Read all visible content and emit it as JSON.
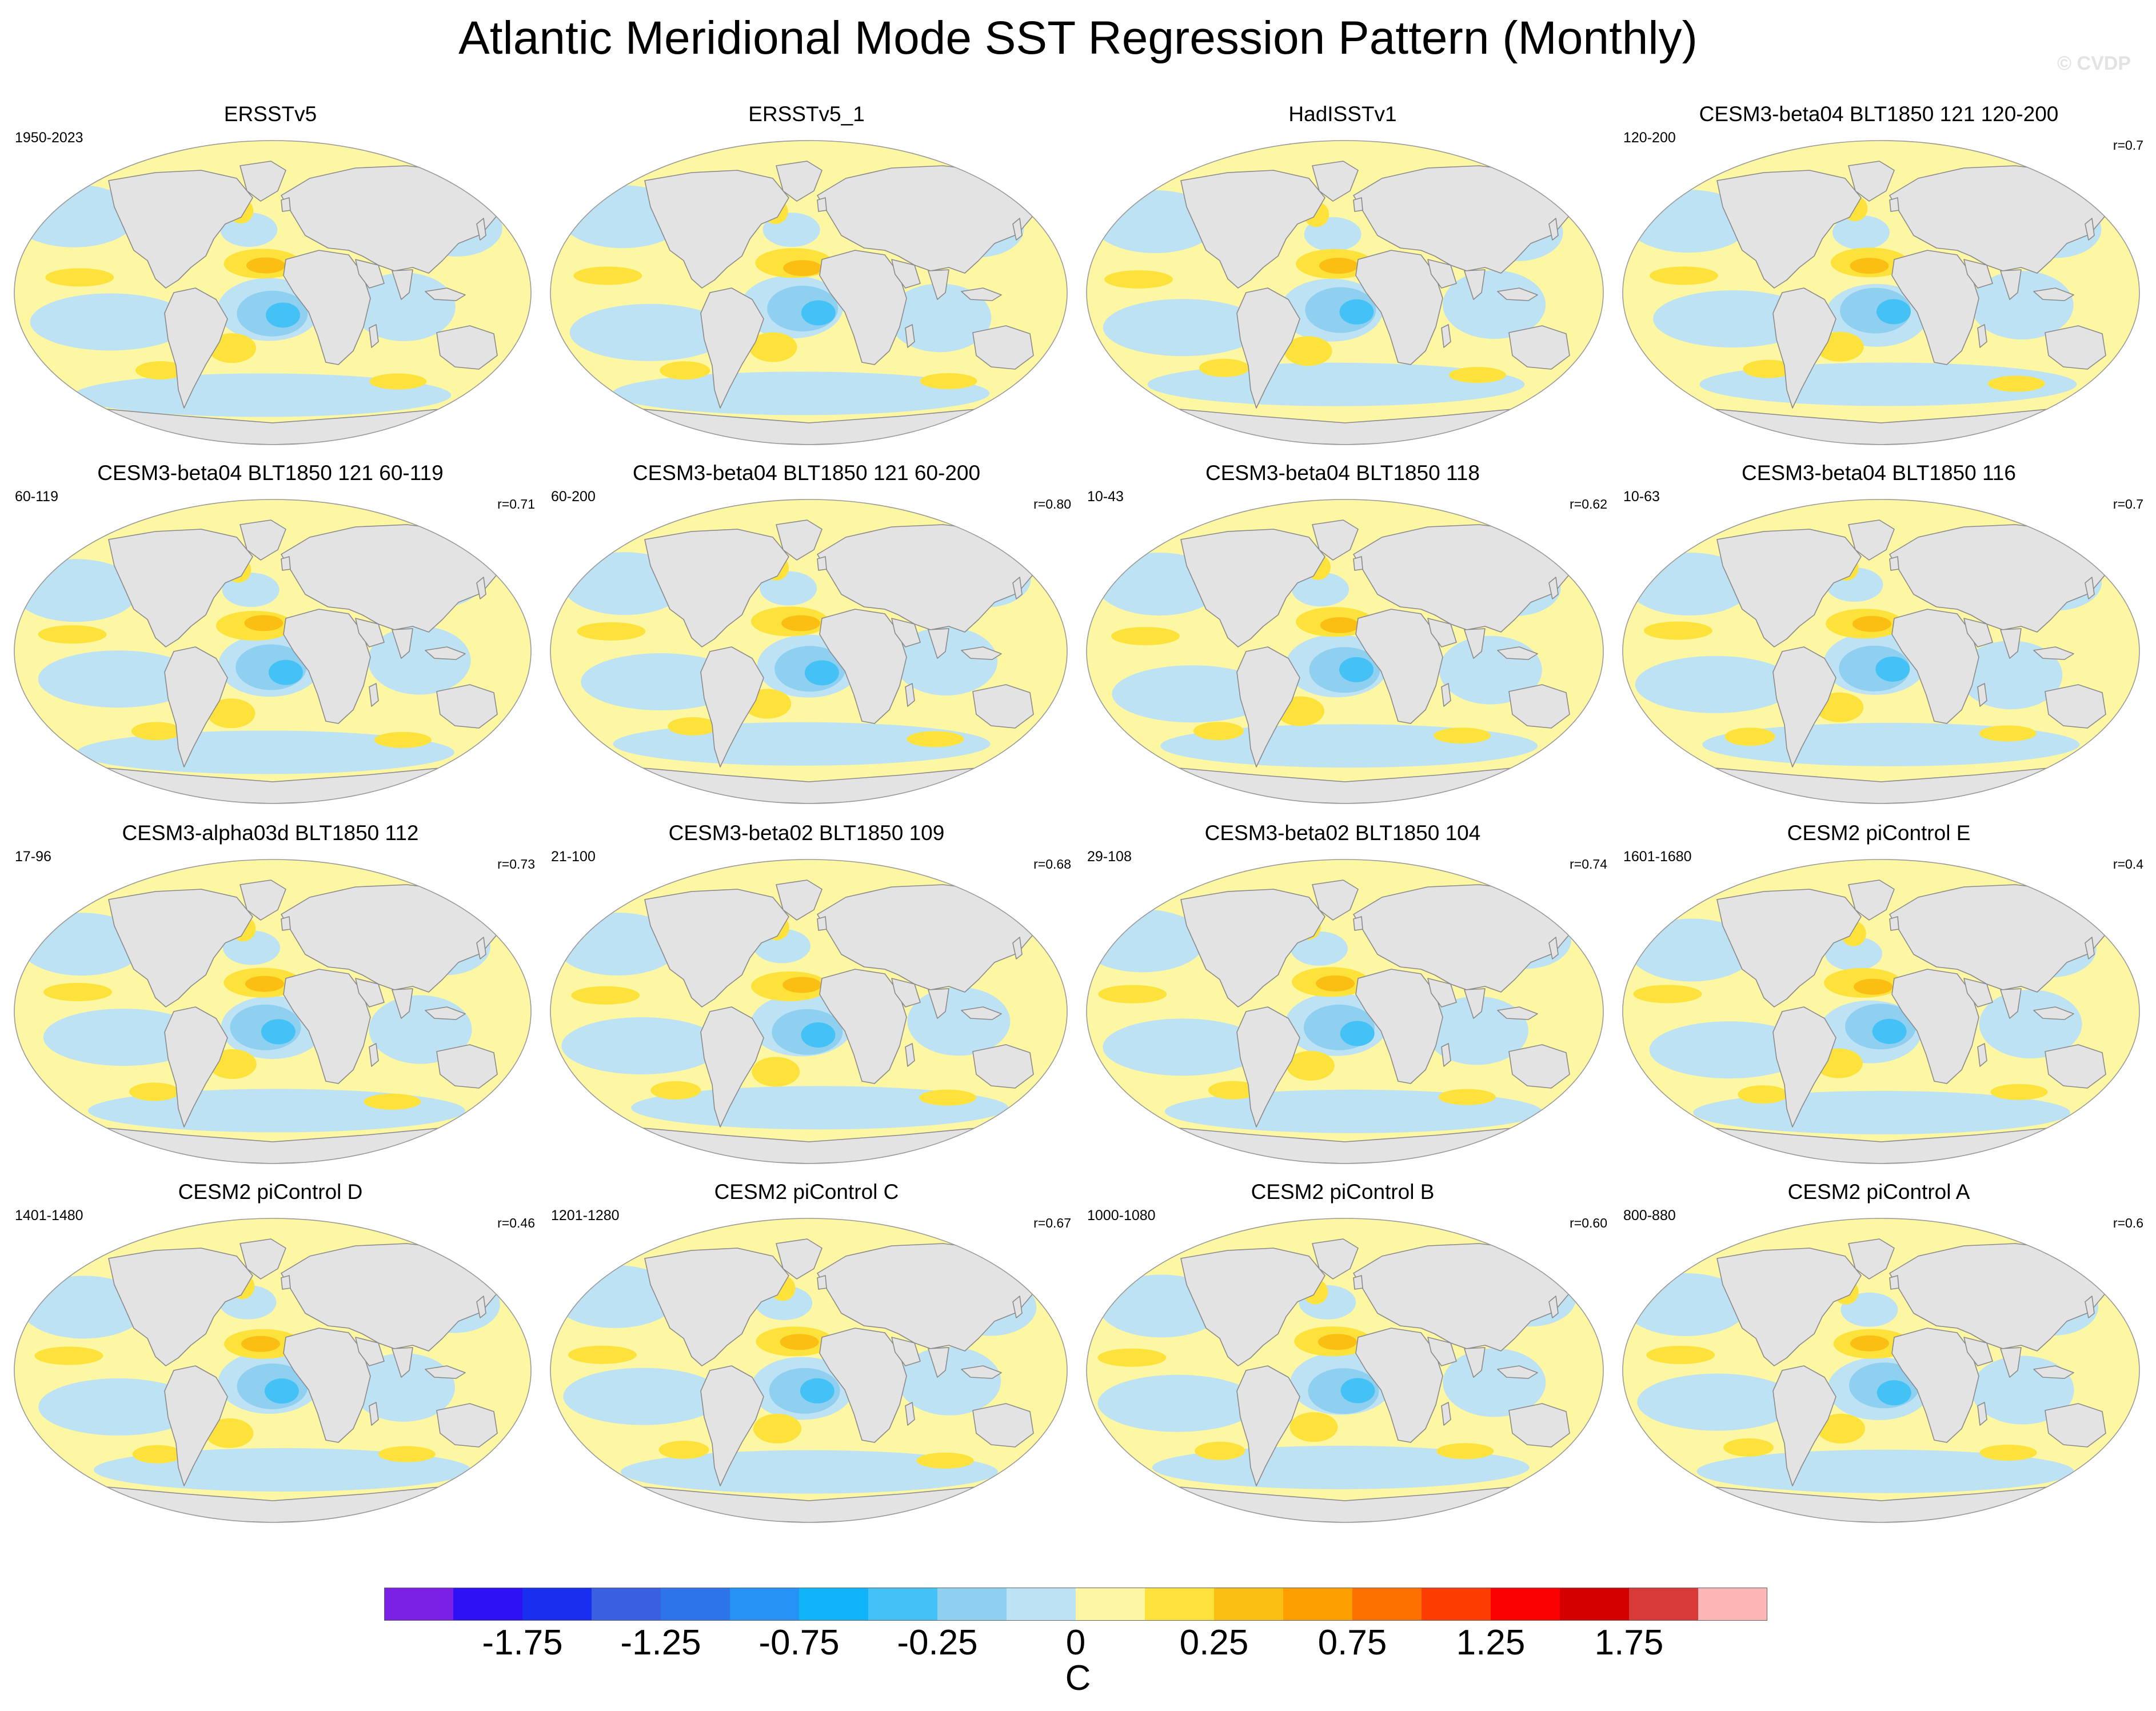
{
  "title": "Atlantic Meridional Mode SST Regression Pattern (Monthly)",
  "watermark": "© CVDP",
  "panels": [
    {
      "name": "ERSSTv5",
      "years": "1950-2023",
      "corr": "",
      "variant": 0
    },
    {
      "name": "ERSSTv5_1",
      "years": "",
      "corr": "",
      "variant": 1
    },
    {
      "name": "HadISSTv1",
      "years": "",
      "corr": "",
      "variant": 2
    },
    {
      "name": "CESM3-beta04 BLT1850 121 120-200",
      "years": "120-200",
      "corr": "r=0.7",
      "variant": 3
    },
    {
      "name": "CESM3-beta04 BLT1850 121 60-119",
      "years": "60-119",
      "corr": "r=0.71",
      "variant": 4
    },
    {
      "name": "CESM3-beta04 BLT1850 121 60-200",
      "years": "60-200",
      "corr": "r=0.80",
      "variant": 5
    },
    {
      "name": "CESM3-beta04 BLT1850 118",
      "years": "10-43",
      "corr": "r=0.62",
      "variant": 6
    },
    {
      "name": "CESM3-beta04 BLT1850 116",
      "years": "10-63",
      "corr": "r=0.7",
      "variant": 7
    },
    {
      "name": "CESM3-alpha03d BLT1850 112",
      "years": "17-96",
      "corr": "r=0.73",
      "variant": 8
    },
    {
      "name": "CESM3-beta02 BLT1850 109",
      "years": "21-100",
      "corr": "r=0.68",
      "variant": 9
    },
    {
      "name": "CESM3-beta02 BLT1850 104",
      "years": "29-108",
      "corr": "r=0.74",
      "variant": 10
    },
    {
      "name": "CESM2 piControl E",
      "years": "1601-1680",
      "corr": "r=0.4",
      "variant": 11
    },
    {
      "name": "CESM2 piControl D",
      "years": "1401-1480",
      "corr": "r=0.46",
      "variant": 12
    },
    {
      "name": "CESM2 piControl C",
      "years": "1201-1280",
      "corr": "r=0.67",
      "variant": 13
    },
    {
      "name": "CESM2 piControl B",
      "years": "1000-1080",
      "corr": "r=0.60",
      "variant": 14
    },
    {
      "name": "CESM2 piControl A",
      "years": "800-880",
      "corr": "r=0.6",
      "variant": 15
    }
  ],
  "colorbar": {
    "units": "C",
    "colors": [
      "#7b21e6",
      "#2e12f5",
      "#1a2ef0",
      "#3a5fe0",
      "#2d73ea",
      "#2592f5",
      "#10b4f8",
      "#45c2f5",
      "#8fd0f0",
      "#bde2f4",
      "#fdf6a3",
      "#fde23c",
      "#fbbe13",
      "#fc9e00",
      "#fc7100",
      "#fc3c00",
      "#fa0000",
      "#d40000",
      "#d83a3a",
      "#fdb5b5"
    ],
    "tick_labels": [
      "-1.75",
      "-1.25",
      "-0.75",
      "-0.25",
      "0",
      "0.25",
      "0.75",
      "1.25",
      "1.75"
    ],
    "tick_boundary_index": [
      2,
      4,
      6,
      8,
      10,
      12,
      14,
      16,
      18
    ]
  },
  "palette": {
    "ocean_base": "#fdf6a3",
    "light_blue": "#bde2f4",
    "mid_blue": "#8fd0f0",
    "blue": "#45c2f5",
    "yellow": "#fde23c",
    "orange": "#fbbe13",
    "land": "#e3e3e3",
    "coast": "#8a8a8a"
  }
}
